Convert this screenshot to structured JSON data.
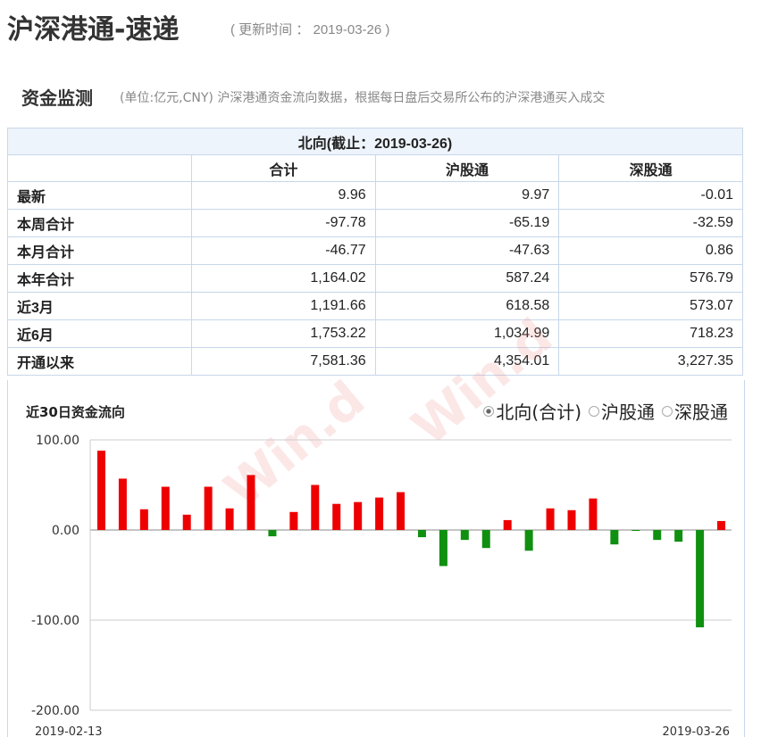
{
  "header": {
    "title": "沪深港通-速递",
    "updated": "( 更新时间 ： 2019-03-26 )"
  },
  "section": {
    "title": "资金监测",
    "note": "(单位:亿元,CNY)  沪深港通资金流向数据，根据每日盘后交易所公布的沪深港通买入成交"
  },
  "table": {
    "caption": "北向(截止：2019-03-26)",
    "columns": [
      "合计",
      "沪股通",
      "深股通"
    ],
    "rows": [
      {
        "label": "最新",
        "values": [
          "9.96",
          "9.97",
          "-0.01"
        ]
      },
      {
        "label": "本周合计",
        "values": [
          "-97.78",
          "-65.19",
          "-32.59"
        ]
      },
      {
        "label": "本月合计",
        "values": [
          "-46.77",
          "-47.63",
          "0.86"
        ]
      },
      {
        "label": "本年合计",
        "values": [
          "1,164.02",
          "587.24",
          "576.79"
        ]
      },
      {
        "label": "近3月",
        "values": [
          "1,191.66",
          "618.58",
          "573.07"
        ]
      },
      {
        "label": "近6月",
        "values": [
          "1,753.22",
          "1,034.99",
          "718.23"
        ]
      },
      {
        "label": "开通以来",
        "values": [
          "7,581.36",
          "4,354.01",
          "3,227.35"
        ]
      }
    ]
  },
  "watermark": "Wind",
  "chart_data": {
    "type": "bar",
    "title": "近30日资金流向",
    "legend": [
      {
        "label": "北向(合计)",
        "selected": true
      },
      {
        "label": "沪股通",
        "selected": false
      },
      {
        "label": "深股通",
        "selected": false
      }
    ],
    "x_start": "2019-02-13",
    "x_end": "2019-03-26",
    "yticks": [
      "100.00",
      "0.00",
      "-100.00",
      "-200.00"
    ],
    "ylim": [
      -200,
      100
    ],
    "values": [
      88,
      57,
      23,
      48,
      17,
      48,
      24,
      61,
      -7,
      20,
      50,
      29,
      31,
      36,
      42,
      -8,
      -40,
      -11,
      -20,
      11,
      -23,
      24,
      22,
      35,
      -16,
      -1,
      -11,
      -13,
      -108,
      9.96
    ],
    "colors": {
      "positive": "#ee0000",
      "negative": "#109010"
    }
  }
}
